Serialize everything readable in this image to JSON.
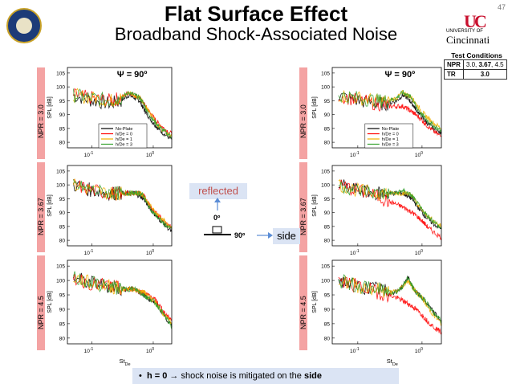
{
  "header": {
    "title": "Flat Surface Effect",
    "subtitle": "Broadband Shock-Associated Noise",
    "page_number": "47",
    "logo_top": "UNIVERSITY OF",
    "logo_name": "Cincinnati",
    "logo_mark": "UC"
  },
  "test_conditions": {
    "title": "Test Conditions",
    "rows": [
      {
        "param": "NPR",
        "value_pre": "3.0, ",
        "value_bold": "3.67",
        "value_post": ", 4.5"
      },
      {
        "param": "TR",
        "value_pre": "",
        "value_bold": "3.0",
        "value_post": ""
      }
    ]
  },
  "annotations": {
    "psi_label": "Ψ = 90º",
    "reflected": "reflected",
    "side": "side",
    "deg0": "0º",
    "deg90": "90º",
    "bullet": "•",
    "bullet_pre": "h = 0",
    "bullet_arrow": "→",
    "bullet_mid": " shock noise is mitigated on the ",
    "bullet_bold": "side"
  },
  "colors": {
    "no_plate": "#000000",
    "h0": "#ff0000",
    "h1": "#f0b000",
    "h3": "#33a02c",
    "npr_bar": "#f4a3a3",
    "callout_bg": "#dbe4f4"
  },
  "chart_data": {
    "type": "line",
    "xlabel_base": "St",
    "xlabel_sub": "De",
    "ylabel": "SPL [dB]",
    "x_scale": "log",
    "xlim": [
      0.04,
      2.0
    ],
    "ylim": [
      78,
      107
    ],
    "yticks": [
      80,
      85,
      90,
      95,
      100,
      105
    ],
    "xtick_labels": [
      {
        "value": 0.1,
        "base": "10",
        "exp": "-1"
      },
      {
        "value": 1.0,
        "base": "10",
        "exp": "0"
      }
    ],
    "legend": [
      "No-Plate",
      "h/De = 0",
      "h/De = 1",
      "h/De = 3"
    ],
    "npr_labels": [
      "NPR = 3.0",
      "NPR = 3.67",
      "NPR = 4.5"
    ],
    "panels": [
      {
        "column": "reflected",
        "npr": "NPR = 3.0",
        "legend": true,
        "psi": true,
        "series": [
          {
            "name": "No-Plate",
            "x": [
              0.05,
              0.1,
              0.2,
              0.3,
              0.4,
              0.5,
              0.6,
              0.7,
              0.8,
              1.0,
              1.2,
              1.5,
              2.0
            ],
            "y": [
              97,
              95,
              94,
              95,
              97,
              96,
              95,
              92,
              90,
              87,
              85,
              83,
              81
            ]
          },
          {
            "name": "h/De = 0",
            "x": [
              0.05,
              0.1,
              0.2,
              0.3,
              0.4,
              0.5,
              0.6,
              0.7,
              0.8,
              1.0,
              1.2,
              1.5,
              2.0
            ],
            "y": [
              97,
              96,
              95,
              96,
              98,
              97,
              96,
              94,
              92,
              89,
              87,
              85,
              83
            ]
          },
          {
            "name": "h/De = 1",
            "x": [
              0.05,
              0.1,
              0.2,
              0.3,
              0.4,
              0.5,
              0.6,
              0.7,
              0.8,
              1.0,
              1.2,
              1.5,
              2.0
            ],
            "y": [
              97,
              96,
              95,
              96,
              98,
              97,
              96,
              94,
              92,
              89,
              86,
              84,
              82
            ]
          },
          {
            "name": "h/De = 3",
            "x": [
              0.05,
              0.1,
              0.2,
              0.3,
              0.4,
              0.5,
              0.6,
              0.7,
              0.8,
              1.0,
              1.2,
              1.5,
              2.0
            ],
            "y": [
              97,
              96,
              95,
              96,
              98,
              97,
              96,
              94,
              91,
              88,
              86,
              84,
              82
            ]
          }
        ]
      },
      {
        "column": "side",
        "npr": "NPR = 3.0",
        "legend": true,
        "psi": true,
        "series": [
          {
            "name": "No-Plate",
            "x": [
              0.05,
              0.1,
              0.2,
              0.3,
              0.4,
              0.5,
              0.6,
              0.7,
              0.8,
              1.0,
              1.2,
              1.5,
              2.0
            ],
            "y": [
              97,
              95,
              94,
              94,
              95,
              97,
              96,
              94,
              92,
              89,
              87,
              85,
              83
            ]
          },
          {
            "name": "h/De = 0",
            "x": [
              0.05,
              0.1,
              0.2,
              0.3,
              0.4,
              0.5,
              0.6,
              0.7,
              0.8,
              1.0,
              1.2,
              1.5,
              2.0
            ],
            "y": [
              97,
              95,
              94,
              93,
              93,
              93,
              92,
              91,
              90,
              88,
              86,
              84,
              82
            ]
          },
          {
            "name": "h/De = 1",
            "x": [
              0.05,
              0.1,
              0.2,
              0.3,
              0.4,
              0.5,
              0.6,
              0.7,
              0.8,
              1.0,
              1.2,
              1.5,
              2.0
            ],
            "y": [
              97,
              96,
              95,
              95,
              96,
              98,
              97,
              96,
              94,
              91,
              89,
              87,
              85
            ]
          },
          {
            "name": "h/De = 3",
            "x": [
              0.05,
              0.1,
              0.2,
              0.3,
              0.4,
              0.5,
              0.6,
              0.7,
              0.8,
              1.0,
              1.2,
              1.5,
              2.0
            ],
            "y": [
              97,
              96,
              95,
              95,
              96,
              98,
              97,
              96,
              93,
              90,
              88,
              86,
              84
            ]
          }
        ]
      },
      {
        "column": "reflected",
        "npr": "NPR = 3.67",
        "legend": false,
        "psi": false,
        "series": [
          {
            "name": "No-Plate",
            "x": [
              0.05,
              0.1,
              0.2,
              0.3,
              0.4,
              0.5,
              0.6,
              0.7,
              0.8,
              1.0,
              1.2,
              1.5,
              2.0
            ],
            "y": [
              100,
              98,
              97,
              97,
              97,
              97,
              96,
              95,
              93,
              90,
              88,
              86,
              83
            ]
          },
          {
            "name": "h/De = 0",
            "x": [
              0.05,
              0.1,
              0.2,
              0.3,
              0.4,
              0.5,
              0.6,
              0.7,
              0.8,
              1.0,
              1.2,
              1.5,
              2.0
            ],
            "y": [
              100,
              98,
              97,
              97,
              97,
              97,
              97,
              96,
              94,
              91,
              89,
              87,
              85
            ]
          },
          {
            "name": "h/De = 1",
            "x": [
              0.05,
              0.1,
              0.2,
              0.3,
              0.4,
              0.5,
              0.6,
              0.7,
              0.8,
              1.0,
              1.2,
              1.5,
              2.0
            ],
            "y": [
              100,
              98,
              97,
              97,
              97,
              97,
              97,
              96,
              94,
              91,
              89,
              87,
              84
            ]
          },
          {
            "name": "h/De = 3",
            "x": [
              0.05,
              0.1,
              0.2,
              0.3,
              0.4,
              0.5,
              0.6,
              0.7,
              0.8,
              1.0,
              1.2,
              1.5,
              2.0
            ],
            "y": [
              100,
              98,
              97,
              97,
              97,
              97,
              97,
              96,
              93,
              90,
              88,
              86,
              84
            ]
          }
        ]
      },
      {
        "column": "side",
        "npr": "NPR = 3.67",
        "legend": false,
        "psi": false,
        "series": [
          {
            "name": "No-Plate",
            "x": [
              0.05,
              0.1,
              0.2,
              0.3,
              0.4,
              0.5,
              0.6,
              0.7,
              0.8,
              1.0,
              1.2,
              1.5,
              2.0
            ],
            "y": [
              100,
              98,
              97,
              97,
              97,
              97,
              96,
              95,
              93,
              90,
              88,
              86,
              84
            ]
          },
          {
            "name": "h/De = 0",
            "x": [
              0.05,
              0.1,
              0.2,
              0.3,
              0.4,
              0.5,
              0.6,
              0.7,
              0.8,
              1.0,
              1.2,
              1.5,
              2.0
            ],
            "y": [
              100,
              98,
              96,
              94,
              93,
              92,
              91,
              90,
              89,
              87,
              85,
              83,
              81
            ]
          },
          {
            "name": "h/De = 1",
            "x": [
              0.05,
              0.1,
              0.2,
              0.3,
              0.4,
              0.5,
              0.6,
              0.7,
              0.8,
              1.0,
              1.2,
              1.5,
              2.0
            ],
            "y": [
              100,
              98,
              97,
              97,
              97,
              97,
              97,
              96,
              94,
              91,
              89,
              87,
              85
            ]
          },
          {
            "name": "h/De = 3",
            "x": [
              0.05,
              0.1,
              0.2,
              0.3,
              0.4,
              0.5,
              0.6,
              0.7,
              0.8,
              1.0,
              1.2,
              1.5,
              2.0
            ],
            "y": [
              100,
              98,
              97,
              97,
              97,
              98,
              97,
              96,
              94,
              91,
              89,
              87,
              84
            ]
          }
        ]
      },
      {
        "column": "reflected",
        "npr": "NPR = 4.5",
        "legend": false,
        "psi": false,
        "series": [
          {
            "name": "No-Plate",
            "x": [
              0.05,
              0.1,
              0.2,
              0.3,
              0.4,
              0.5,
              0.6,
              0.7,
              0.8,
              1.0,
              1.2,
              1.5,
              2.0
            ],
            "y": [
              101,
              99,
              98,
              97,
              97,
              97,
              96,
              95,
              94,
              93,
              91,
              88,
              84
            ]
          },
          {
            "name": "h/De = 0",
            "x": [
              0.05,
              0.1,
              0.2,
              0.3,
              0.4,
              0.5,
              0.6,
              0.7,
              0.8,
              1.0,
              1.2,
              1.5,
              2.0
            ],
            "y": [
              101,
              99,
              98,
              97,
              97,
              97,
              96,
              96,
              95,
              94,
              92,
              89,
              86
            ]
          },
          {
            "name": "h/De = 1",
            "x": [
              0.05,
              0.1,
              0.2,
              0.3,
              0.4,
              0.5,
              0.6,
              0.7,
              0.8,
              1.0,
              1.2,
              1.5,
              2.0
            ],
            "y": [
              101,
              99,
              98,
              97,
              97,
              97,
              96,
              96,
              95,
              93,
              91,
              88,
              85
            ]
          },
          {
            "name": "h/De = 3",
            "x": [
              0.05,
              0.1,
              0.2,
              0.3,
              0.4,
              0.5,
              0.6,
              0.7,
              0.8,
              1.0,
              1.2,
              1.5,
              2.0
            ],
            "y": [
              101,
              99,
              98,
              97,
              97,
              97,
              96,
              95,
              94,
              93,
              91,
              88,
              84
            ]
          }
        ]
      },
      {
        "column": "side",
        "npr": "NPR = 4.5",
        "legend": false,
        "psi": false,
        "series": [
          {
            "name": "No-Plate",
            "x": [
              0.05,
              0.1,
              0.2,
              0.3,
              0.4,
              0.5,
              0.6,
              0.7,
              0.8,
              1.0,
              1.2,
              1.5,
              2.0
            ],
            "y": [
              100,
              98,
              97,
              96,
              96,
              98,
              101,
              98,
              96,
              94,
              92,
              89,
              86
            ]
          },
          {
            "name": "h/De = 0",
            "x": [
              0.05,
              0.1,
              0.2,
              0.3,
              0.4,
              0.5,
              0.6,
              0.7,
              0.8,
              1.0,
              1.2,
              1.5,
              2.0
            ],
            "y": [
              100,
              98,
              96,
              95,
              94,
              93,
              92,
              91,
              90,
              88,
              86,
              84,
              82
            ]
          },
          {
            "name": "h/De = 1",
            "x": [
              0.05,
              0.1,
              0.2,
              0.3,
              0.4,
              0.5,
              0.6,
              0.7,
              0.8,
              1.0,
              1.2,
              1.5,
              2.0
            ],
            "y": [
              100,
              98,
              97,
              96,
              96,
              98,
              100,
              98,
              96,
              94,
              91,
              88,
              85
            ]
          },
          {
            "name": "h/De = 3",
            "x": [
              0.05,
              0.1,
              0.2,
              0.3,
              0.4,
              0.5,
              0.6,
              0.7,
              0.8,
              1.0,
              1.2,
              1.5,
              2.0
            ],
            "y": [
              100,
              98,
              97,
              96,
              96,
              98,
              101,
              98,
              96,
              94,
              92,
              89,
              86
            ]
          }
        ]
      }
    ]
  }
}
